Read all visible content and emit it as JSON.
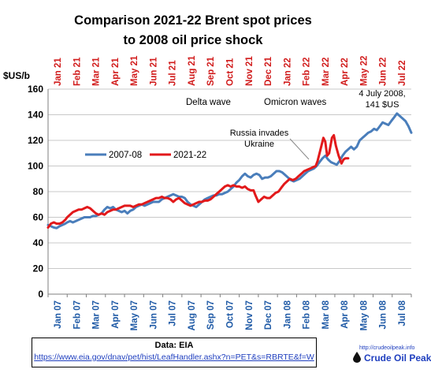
{
  "chart_data": {
    "type": "line",
    "title_line1": "Comparison 2021-22 Brent spot prices",
    "title_line2": "to 2008 oil price shock",
    "ylabel": "$US/b",
    "ylim": [
      0,
      160
    ],
    "yticks": [
      0,
      20,
      40,
      60,
      80,
      100,
      120,
      140,
      160
    ],
    "grid": true,
    "legend_placement": "middle-left",
    "x_bottom_ticks": [
      "Jan 07",
      "Feb 07",
      "Mar 07",
      "Apr 07",
      "May 07",
      "Jun 07",
      "Jul 07",
      "Aug 07",
      "Sep 07",
      "Oct 07",
      "Nov 07",
      "Dec 07",
      "Jan 08",
      "Feb 08",
      "Mar 08",
      "Apr 08",
      "May 08",
      "Jun 08",
      "Jul 08"
    ],
    "x_top_ticks": [
      "Jan 21",
      "Feb 21",
      "Mar 21",
      "Apr 21",
      "May 21",
      "Jun 21",
      "Jul 21",
      "Aug 21",
      "Sep 21",
      "Oct 21",
      "Nov 21",
      "Dec 21",
      "Jan 22",
      "Feb 22",
      "Mar 22",
      "Apr 22",
      "May 22",
      "Jun 22",
      "Jul 22"
    ],
    "x_month_range": [
      0,
      19
    ],
    "series": [
      {
        "name": "2007-08",
        "color": "#4a7ebb",
        "points": [
          [
            0,
            54
          ],
          [
            0.15,
            53
          ],
          [
            0.3,
            52
          ],
          [
            0.45,
            51.5
          ],
          [
            0.6,
            53
          ],
          [
            0.75,
            54
          ],
          [
            0.9,
            55
          ],
          [
            1.0,
            56
          ],
          [
            1.15,
            57
          ],
          [
            1.3,
            56
          ],
          [
            1.45,
            57
          ],
          [
            1.6,
            58
          ],
          [
            1.75,
            59
          ],
          [
            1.9,
            60
          ],
          [
            2.05,
            60
          ],
          [
            2.2,
            60
          ],
          [
            2.35,
            61
          ],
          [
            2.5,
            61
          ],
          [
            2.65,
            62
          ],
          [
            2.8,
            63
          ],
          [
            2.95,
            66
          ],
          [
            3.1,
            68
          ],
          [
            3.25,
            67
          ],
          [
            3.4,
            68
          ],
          [
            3.55,
            66
          ],
          [
            3.7,
            65
          ],
          [
            3.85,
            64
          ],
          [
            4.0,
            65
          ],
          [
            4.15,
            63
          ],
          [
            4.3,
            65
          ],
          [
            4.45,
            66
          ],
          [
            4.6,
            68
          ],
          [
            4.75,
            69
          ],
          [
            4.9,
            70
          ],
          [
            5.05,
            69
          ],
          [
            5.2,
            70
          ],
          [
            5.35,
            71
          ],
          [
            5.5,
            72
          ],
          [
            5.65,
            72
          ],
          [
            5.8,
            72
          ],
          [
            5.95,
            74
          ],
          [
            6.1,
            75
          ],
          [
            6.25,
            76
          ],
          [
            6.4,
            77
          ],
          [
            6.55,
            78
          ],
          [
            6.7,
            77
          ],
          [
            6.85,
            76
          ],
          [
            7.0,
            76
          ],
          [
            7.15,
            75
          ],
          [
            7.3,
            72
          ],
          [
            7.45,
            70
          ],
          [
            7.6,
            69
          ],
          [
            7.75,
            68
          ],
          [
            7.9,
            70
          ],
          [
            8.05,
            72
          ],
          [
            8.2,
            74
          ],
          [
            8.35,
            75
          ],
          [
            8.5,
            76
          ],
          [
            8.65,
            77
          ],
          [
            8.8,
            77
          ],
          [
            8.95,
            78
          ],
          [
            9.1,
            78
          ],
          [
            9.25,
            79
          ],
          [
            9.4,
            80
          ],
          [
            9.55,
            82
          ],
          [
            9.7,
            84
          ],
          [
            9.85,
            87
          ],
          [
            10.0,
            89
          ],
          [
            10.15,
            92
          ],
          [
            10.3,
            94
          ],
          [
            10.45,
            92
          ],
          [
            10.6,
            91
          ],
          [
            10.75,
            93
          ],
          [
            10.9,
            94
          ],
          [
            11.05,
            93
          ],
          [
            11.2,
            90
          ],
          [
            11.35,
            91
          ],
          [
            11.5,
            91
          ],
          [
            11.65,
            92
          ],
          [
            11.8,
            94
          ],
          [
            11.95,
            96
          ],
          [
            12.1,
            96
          ],
          [
            12.25,
            95
          ],
          [
            12.4,
            93
          ],
          [
            12.55,
            91
          ],
          [
            12.7,
            89
          ],
          [
            12.85,
            88
          ],
          [
            13.0,
            89
          ],
          [
            13.15,
            90
          ],
          [
            13.3,
            92
          ],
          [
            13.45,
            94
          ],
          [
            13.6,
            96
          ],
          [
            13.75,
            97
          ],
          [
            13.9,
            98
          ],
          [
            14.05,
            100
          ],
          [
            14.2,
            103
          ],
          [
            14.35,
            106
          ],
          [
            14.5,
            108
          ],
          [
            14.65,
            105
          ],
          [
            14.8,
            103
          ],
          [
            14.95,
            102
          ],
          [
            15.1,
            101
          ],
          [
            15.25,
            104
          ],
          [
            15.4,
            108
          ],
          [
            15.55,
            111
          ],
          [
            15.7,
            113
          ],
          [
            15.85,
            115
          ],
          [
            16.0,
            113
          ],
          [
            16.15,
            115
          ],
          [
            16.3,
            120
          ],
          [
            16.45,
            122
          ],
          [
            16.6,
            124
          ],
          [
            16.75,
            126
          ],
          [
            16.9,
            127
          ],
          [
            17.05,
            129
          ],
          [
            17.2,
            128
          ],
          [
            17.35,
            131
          ],
          [
            17.5,
            134
          ],
          [
            17.65,
            133
          ],
          [
            17.8,
            132
          ],
          [
            17.95,
            135
          ],
          [
            18.1,
            138
          ],
          [
            18.25,
            141
          ],
          [
            18.4,
            139
          ],
          [
            18.55,
            137
          ],
          [
            18.7,
            135
          ],
          [
            18.85,
            131
          ],
          [
            19.0,
            126
          ]
        ]
      },
      {
        "name": "2021-22",
        "color": "#e2191b",
        "points": [
          [
            0,
            52
          ],
          [
            0.15,
            55
          ],
          [
            0.3,
            56
          ],
          [
            0.45,
            55
          ],
          [
            0.6,
            55
          ],
          [
            0.75,
            56
          ],
          [
            0.9,
            58
          ],
          [
            1.0,
            60
          ],
          [
            1.15,
            62
          ],
          [
            1.3,
            64
          ],
          [
            1.45,
            65
          ],
          [
            1.6,
            66
          ],
          [
            1.75,
            66
          ],
          [
            1.9,
            67
          ],
          [
            2.05,
            68
          ],
          [
            2.2,
            67
          ],
          [
            2.35,
            65
          ],
          [
            2.5,
            63
          ],
          [
            2.65,
            62
          ],
          [
            2.8,
            63
          ],
          [
            2.95,
            62
          ],
          [
            3.1,
            64
          ],
          [
            3.25,
            65
          ],
          [
            3.4,
            66
          ],
          [
            3.55,
            66
          ],
          [
            3.7,
            67
          ],
          [
            3.85,
            68
          ],
          [
            4.0,
            69
          ],
          [
            4.15,
            69
          ],
          [
            4.3,
            69
          ],
          [
            4.45,
            68
          ],
          [
            4.6,
            69
          ],
          [
            4.75,
            70
          ],
          [
            4.9,
            70
          ],
          [
            5.05,
            71
          ],
          [
            5.2,
            72
          ],
          [
            5.35,
            73
          ],
          [
            5.5,
            74
          ],
          [
            5.65,
            75
          ],
          [
            5.8,
            75
          ],
          [
            5.95,
            76
          ],
          [
            6.1,
            75
          ],
          [
            6.25,
            75
          ],
          [
            6.4,
            74
          ],
          [
            6.55,
            72
          ],
          [
            6.7,
            74
          ],
          [
            6.85,
            75
          ],
          [
            7.0,
            73
          ],
          [
            7.15,
            71
          ],
          [
            7.3,
            70
          ],
          [
            7.45,
            69
          ],
          [
            7.6,
            70
          ],
          [
            7.75,
            71
          ],
          [
            7.9,
            72
          ],
          [
            8.05,
            72
          ],
          [
            8.2,
            73
          ],
          [
            8.35,
            73
          ],
          [
            8.5,
            74
          ],
          [
            8.65,
            76
          ],
          [
            8.8,
            78
          ],
          [
            8.95,
            80
          ],
          [
            9.1,
            82
          ],
          [
            9.25,
            84
          ],
          [
            9.4,
            85
          ],
          [
            9.55,
            84
          ],
          [
            9.7,
            85
          ],
          [
            9.85,
            84
          ],
          [
            10.0,
            84
          ],
          [
            10.15,
            83
          ],
          [
            10.3,
            84
          ],
          [
            10.45,
            82
          ],
          [
            10.6,
            81
          ],
          [
            10.75,
            81
          ],
          [
            10.85,
            77
          ],
          [
            11.0,
            72
          ],
          [
            11.15,
            74
          ],
          [
            11.3,
            76
          ],
          [
            11.45,
            75
          ],
          [
            11.6,
            75
          ],
          [
            11.75,
            77
          ],
          [
            11.9,
            79
          ],
          [
            12.05,
            80
          ],
          [
            12.2,
            83
          ],
          [
            12.35,
            86
          ],
          [
            12.5,
            88
          ],
          [
            12.65,
            90
          ],
          [
            12.8,
            89
          ],
          [
            12.95,
            90
          ],
          [
            13.1,
            92
          ],
          [
            13.25,
            94
          ],
          [
            13.4,
            96
          ],
          [
            13.55,
            97
          ],
          [
            13.7,
            98
          ],
          [
            13.85,
            99
          ],
          [
            14.0,
            100
          ],
          [
            14.1,
            104
          ],
          [
            14.25,
            113
          ],
          [
            14.4,
            122
          ],
          [
            14.5,
            119
          ],
          [
            14.6,
            108
          ],
          [
            14.7,
            110
          ],
          [
            14.85,
            122
          ],
          [
            14.95,
            124
          ],
          [
            15.05,
            116
          ],
          [
            15.2,
            108
          ],
          [
            15.35,
            102
          ],
          [
            15.45,
            105
          ],
          [
            15.55,
            106
          ],
          [
            15.7,
            106
          ]
        ]
      }
    ],
    "annotations": {
      "delta": "Delta wave",
      "omicron": "Omicron waves",
      "russia_l1": "Russia invades",
      "russia_l2": "Ukraine",
      "peak_l1": "4 July 2008,",
      "peak_l2": "141 $US"
    }
  },
  "source": {
    "label": "Data:  EIA",
    "url": "https://www.eia.gov/dnav/pet/hist/LeafHandler.ashx?n=PET&s=RBRTE&f=W"
  },
  "logo": {
    "url": "http://crudeoilpeak.info",
    "name": "Crude Oil Peak"
  }
}
